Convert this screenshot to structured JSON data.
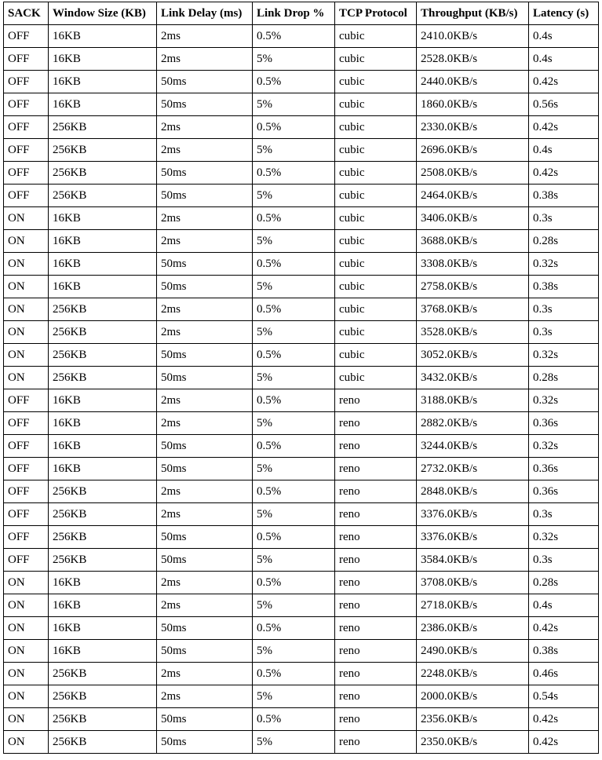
{
  "table": {
    "headers": [
      "SACK",
      "Window Size (KB)",
      "Link Delay (ms)",
      "Link Drop %",
      "TCP Protocol",
      "Throughput (KB/s)",
      "Latency (s)"
    ],
    "rows": [
      [
        "OFF",
        "16KB",
        "2ms",
        "0.5%",
        "cubic",
        "2410.0KB/s",
        "0.4s"
      ],
      [
        "OFF",
        "16KB",
        "2ms",
        "5%",
        "cubic",
        "2528.0KB/s",
        "0.4s"
      ],
      [
        "OFF",
        "16KB",
        "50ms",
        "0.5%",
        "cubic",
        "2440.0KB/s",
        "0.42s"
      ],
      [
        "OFF",
        "16KB",
        "50ms",
        "5%",
        "cubic",
        "1860.0KB/s",
        "0.56s"
      ],
      [
        "OFF",
        "256KB",
        "2ms",
        "0.5%",
        "cubic",
        "2330.0KB/s",
        "0.42s"
      ],
      [
        "OFF",
        "256KB",
        "2ms",
        "5%",
        "cubic",
        "2696.0KB/s",
        "0.4s"
      ],
      [
        "OFF",
        "256KB",
        "50ms",
        "0.5%",
        "cubic",
        "2508.0KB/s",
        "0.42s"
      ],
      [
        "OFF",
        "256KB",
        "50ms",
        "5%",
        "cubic",
        "2464.0KB/s",
        "0.38s"
      ],
      [
        "ON",
        "16KB",
        "2ms",
        "0.5%",
        "cubic",
        "3406.0KB/s",
        "0.3s"
      ],
      [
        "ON",
        "16KB",
        "2ms",
        "5%",
        "cubic",
        "3688.0KB/s",
        "0.28s"
      ],
      [
        "ON",
        "16KB",
        "50ms",
        "0.5%",
        "cubic",
        "3308.0KB/s",
        "0.32s"
      ],
      [
        "ON",
        "16KB",
        "50ms",
        "5%",
        "cubic",
        "2758.0KB/s",
        "0.38s"
      ],
      [
        "ON",
        "256KB",
        "2ms",
        "0.5%",
        "cubic",
        "3768.0KB/s",
        "0.3s"
      ],
      [
        "ON",
        "256KB",
        "2ms",
        "5%",
        "cubic",
        "3528.0KB/s",
        "0.3s"
      ],
      [
        "ON",
        "256KB",
        "50ms",
        "0.5%",
        "cubic",
        "3052.0KB/s",
        "0.32s"
      ],
      [
        "ON",
        "256KB",
        "50ms",
        "5%",
        "cubic",
        "3432.0KB/s",
        "0.28s"
      ],
      [
        "OFF",
        "16KB",
        "2ms",
        "0.5%",
        "reno",
        "3188.0KB/s",
        "0.32s"
      ],
      [
        "OFF",
        "16KB",
        "2ms",
        "5%",
        "reno",
        "2882.0KB/s",
        "0.36s"
      ],
      [
        "OFF",
        "16KB",
        "50ms",
        "0.5%",
        "reno",
        "3244.0KB/s",
        "0.32s"
      ],
      [
        "OFF",
        "16KB",
        "50ms",
        "5%",
        "reno",
        "2732.0KB/s",
        "0.36s"
      ],
      [
        "OFF",
        "256KB",
        "2ms",
        "0.5%",
        "reno",
        "2848.0KB/s",
        "0.36s"
      ],
      [
        "OFF",
        "256KB",
        "2ms",
        "5%",
        "reno",
        "3376.0KB/s",
        "0.3s"
      ],
      [
        "OFF",
        "256KB",
        "50ms",
        "0.5%",
        "reno",
        "3376.0KB/s",
        "0.32s"
      ],
      [
        "OFF",
        "256KB",
        "50ms",
        "5%",
        "reno",
        "3584.0KB/s",
        "0.3s"
      ],
      [
        "ON",
        "16KB",
        "2ms",
        "0.5%",
        "reno",
        "3708.0KB/s",
        "0.28s"
      ],
      [
        "ON",
        "16KB",
        "2ms",
        "5%",
        "reno",
        "2718.0KB/s",
        "0.4s"
      ],
      [
        "ON",
        "16KB",
        "50ms",
        "0.5%",
        "reno",
        "2386.0KB/s",
        "0.42s"
      ],
      [
        "ON",
        "16KB",
        "50ms",
        "5%",
        "reno",
        "2490.0KB/s",
        "0.38s"
      ],
      [
        "ON",
        "256KB",
        "2ms",
        "0.5%",
        "reno",
        "2248.0KB/s",
        "0.46s"
      ],
      [
        "ON",
        "256KB",
        "2ms",
        "5%",
        "reno",
        "2000.0KB/s",
        "0.54s"
      ],
      [
        "ON",
        "256KB",
        "50ms",
        "0.5%",
        "reno",
        "2356.0KB/s",
        "0.42s"
      ],
      [
        "ON",
        "256KB",
        "50ms",
        "5%",
        "reno",
        "2350.0KB/s",
        "0.42s"
      ]
    ]
  }
}
